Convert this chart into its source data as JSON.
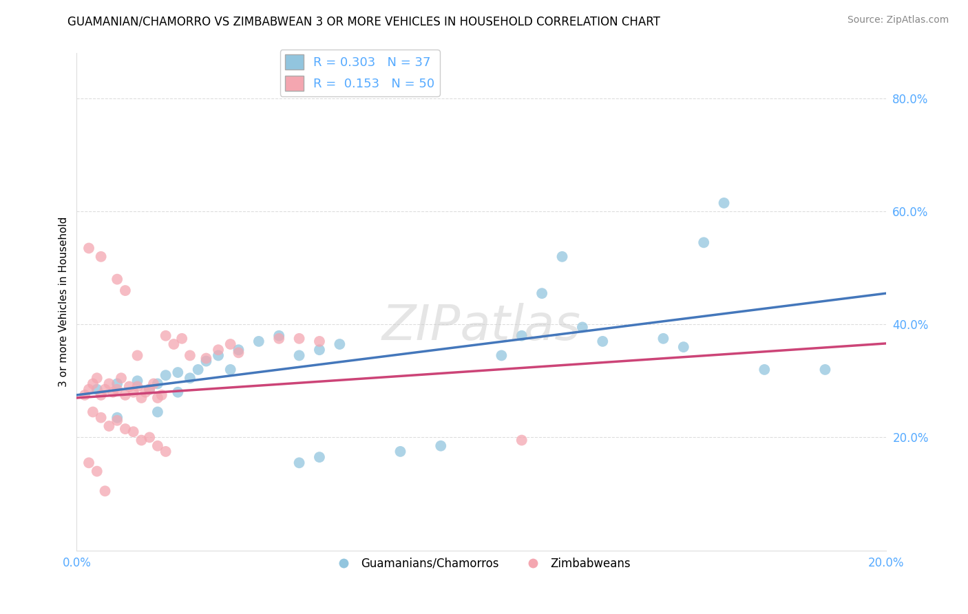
{
  "title": "GUAMANIAN/CHAMORRO VS ZIMBABWEAN 3 OR MORE VEHICLES IN HOUSEHOLD CORRELATION CHART",
  "source": "Source: ZipAtlas.com",
  "ylabel": "3 or more Vehicles in Household",
  "xlim": [
    0.0,
    0.2
  ],
  "ylim": [
    0.0,
    0.88
  ],
  "ytick_vals": [
    0.2,
    0.4,
    0.6,
    0.8
  ],
  "ytick_labels": [
    "20.0%",
    "40.0%",
    "60.0%",
    "80.0%"
  ],
  "xtick_vals": [
    0.0,
    0.2
  ],
  "xtick_labels": [
    "0.0%",
    "20.0%"
  ],
  "legend_r_blue": "0.303",
  "legend_n_blue": "37",
  "legend_r_pink": "0.153",
  "legend_n_pink": "50",
  "blue_color": "#92c5de",
  "pink_color": "#f4a6b0",
  "blue_line_color": "#4477bb",
  "pink_line_color": "#cc4477",
  "blue_scatter": [
    [
      0.005,
      0.285
    ],
    [
      0.01,
      0.295
    ],
    [
      0.015,
      0.3
    ],
    [
      0.018,
      0.285
    ],
    [
      0.02,
      0.295
    ],
    [
      0.022,
      0.31
    ],
    [
      0.025,
      0.315
    ],
    [
      0.028,
      0.305
    ],
    [
      0.03,
      0.32
    ],
    [
      0.032,
      0.335
    ],
    [
      0.035,
      0.345
    ],
    [
      0.038,
      0.32
    ],
    [
      0.04,
      0.355
    ],
    [
      0.045,
      0.37
    ],
    [
      0.05,
      0.38
    ],
    [
      0.055,
      0.345
    ],
    [
      0.06,
      0.355
    ],
    [
      0.065,
      0.365
    ],
    [
      0.01,
      0.235
    ],
    [
      0.02,
      0.245
    ],
    [
      0.025,
      0.28
    ],
    [
      0.055,
      0.155
    ],
    [
      0.06,
      0.165
    ],
    [
      0.08,
      0.175
    ],
    [
      0.09,
      0.185
    ],
    [
      0.105,
      0.345
    ],
    [
      0.11,
      0.38
    ],
    [
      0.115,
      0.455
    ],
    [
      0.12,
      0.52
    ],
    [
      0.125,
      0.395
    ],
    [
      0.13,
      0.37
    ],
    [
      0.145,
      0.375
    ],
    [
      0.15,
      0.36
    ],
    [
      0.155,
      0.545
    ],
    [
      0.16,
      0.615
    ],
    [
      0.17,
      0.32
    ],
    [
      0.185,
      0.32
    ]
  ],
  "pink_scatter": [
    [
      0.002,
      0.275
    ],
    [
      0.003,
      0.285
    ],
    [
      0.004,
      0.295
    ],
    [
      0.005,
      0.305
    ],
    [
      0.006,
      0.275
    ],
    [
      0.007,
      0.285
    ],
    [
      0.008,
      0.295
    ],
    [
      0.009,
      0.28
    ],
    [
      0.01,
      0.285
    ],
    [
      0.011,
      0.305
    ],
    [
      0.012,
      0.275
    ],
    [
      0.013,
      0.29
    ],
    [
      0.014,
      0.28
    ],
    [
      0.015,
      0.29
    ],
    [
      0.016,
      0.27
    ],
    [
      0.017,
      0.28
    ],
    [
      0.018,
      0.285
    ],
    [
      0.019,
      0.295
    ],
    [
      0.02,
      0.27
    ],
    [
      0.021,
      0.275
    ],
    [
      0.004,
      0.245
    ],
    [
      0.006,
      0.235
    ],
    [
      0.008,
      0.22
    ],
    [
      0.01,
      0.23
    ],
    [
      0.012,
      0.215
    ],
    [
      0.014,
      0.21
    ],
    [
      0.016,
      0.195
    ],
    [
      0.018,
      0.2
    ],
    [
      0.02,
      0.185
    ],
    [
      0.022,
      0.175
    ],
    [
      0.003,
      0.155
    ],
    [
      0.005,
      0.14
    ],
    [
      0.007,
      0.105
    ],
    [
      0.003,
      0.535
    ],
    [
      0.006,
      0.52
    ],
    [
      0.01,
      0.48
    ],
    [
      0.012,
      0.46
    ],
    [
      0.022,
      0.38
    ],
    [
      0.024,
      0.365
    ],
    [
      0.026,
      0.375
    ],
    [
      0.035,
      0.355
    ],
    [
      0.038,
      0.365
    ],
    [
      0.05,
      0.375
    ],
    [
      0.11,
      0.195
    ],
    [
      0.055,
      0.375
    ],
    [
      0.06,
      0.37
    ],
    [
      0.028,
      0.345
    ],
    [
      0.032,
      0.34
    ],
    [
      0.04,
      0.35
    ],
    [
      0.015,
      0.345
    ]
  ],
  "background_color": "#ffffff",
  "grid_color": "#dddddd",
  "tick_color": "#55aaff"
}
